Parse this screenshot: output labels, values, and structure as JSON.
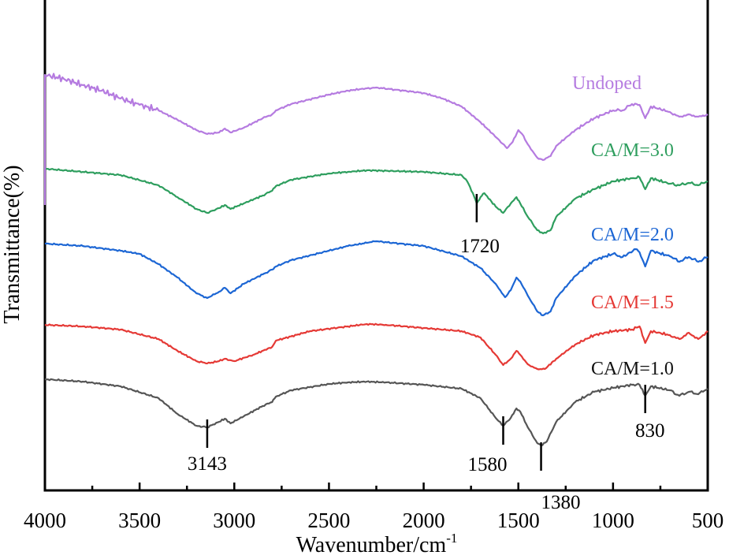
{
  "chart_data": {
    "type": "line",
    "title": "",
    "xlabel": "Wavenumber/cm",
    "xlabel_superscript": "-1",
    "ylabel": "Transmittance(%)",
    "xlim": [
      4000,
      500
    ],
    "x_reversed": true,
    "ylim": [
      0,
      311
    ],
    "y_ticks_shown": false,
    "grid": false,
    "x_ticks": [
      4000,
      3500,
      3000,
      2500,
      2000,
      1500,
      1000,
      500
    ],
    "x_tick_labels": [
      "4000",
      "3500",
      "3000",
      "2500",
      "2000",
      "1500",
      "1000",
      "500"
    ],
    "x_minor_ticks": [
      3750,
      3250,
      2750,
      2250,
      1750,
      1250,
      750
    ],
    "legend_placement": "inline-right",
    "series": [
      {
        "name": "CA/M=1.0",
        "color": "#555555",
        "label_color": "#111111",
        "x": [
          4000,
          3800,
          3600,
          3400,
          3300,
          3200,
          3143,
          3080,
          3050,
          3020,
          2950,
          2850,
          2800,
          2780,
          2700,
          2500,
          2400,
          2300,
          2200,
          2000,
          1800,
          1700,
          1620,
          1580,
          1540,
          1510,
          1490,
          1450,
          1400,
          1380,
          1350,
          1300,
          1200,
          1100,
          1000,
          900,
          860,
          830,
          800,
          700,
          650,
          600,
          550,
          500
        ],
        "y": [
          70.5,
          69,
          66,
          58.5,
          48.5,
          41,
          40,
          43.5,
          45.5,
          42.5,
          47,
          53.5,
          56,
          59.5,
          63.5,
          67.5,
          68.5,
          69,
          68.5,
          67,
          64.5,
          58.5,
          46,
          41,
          46,
          52,
          50,
          40,
          30,
          28.5,
          31,
          43.5,
          56,
          62.5,
          65,
          67,
          67,
          60,
          66,
          63.5,
          60,
          62.5,
          61,
          64.5
        ]
      },
      {
        "name": "CA/M=1.5",
        "color": "#e53935",
        "label_color": "#e53935",
        "x": [
          4000,
          3800,
          3600,
          3400,
          3300,
          3200,
          3143,
          3080,
          3050,
          3000,
          2900,
          2800,
          2780,
          2600,
          2400,
          2300,
          2200,
          2000,
          1800,
          1700,
          1620,
          1580,
          1540,
          1510,
          1490,
          1450,
          1400,
          1360,
          1300,
          1200,
          1100,
          1000,
          900,
          860,
          830,
          800,
          700,
          650,
          600,
          550,
          500
        ],
        "y": [
          105,
          104,
          102,
          96,
          88.5,
          82,
          80.5,
          82,
          83.5,
          82,
          86,
          91,
          95,
          101,
          104,
          105.5,
          105,
          103,
          101,
          97,
          86,
          79.5,
          83.5,
          88.5,
          86,
          80,
          77,
          77,
          83.5,
          92.5,
          98.5,
          101,
          102,
          104,
          93.5,
          101,
          98.5,
          96,
          100,
          96,
          101
        ]
      },
      {
        "name": "CA/M=2.0",
        "color": "#1c66d4",
        "label_color": "#1c66d4",
        "x": [
          4000,
          3800,
          3600,
          3500,
          3400,
          3300,
          3200,
          3143,
          3080,
          3050,
          3020,
          2950,
          2850,
          2800,
          2780,
          2700,
          2500,
          2400,
          2300,
          2250,
          2000,
          1800,
          1700,
          1620,
          1570,
          1540,
          1510,
          1490,
          1450,
          1400,
          1370,
          1330,
          1300,
          1200,
          1100,
          1000,
          950,
          880,
          860,
          830,
          800,
          700,
          650,
          600,
          550,
          500
        ],
        "y": [
          156.5,
          155,
          152,
          150,
          143.5,
          135,
          125,
          122,
          126,
          128.5,
          125,
          131,
          137,
          140,
          142,
          146,
          152,
          155,
          157,
          158,
          155,
          148.5,
          141,
          131,
          122.5,
          127,
          135,
          132.5,
          123.5,
          113.5,
          111,
          113.5,
          122,
          136,
          146,
          150,
          148,
          153,
          151,
          142,
          152,
          148.5,
          145,
          148,
          145,
          148
        ]
      },
      {
        "name": "CA/M=3.0",
        "color": "#2e9e5e",
        "label_color": "#2e9e5e",
        "x": [
          4000,
          3800,
          3600,
          3400,
          3300,
          3200,
          3143,
          3080,
          3050,
          3020,
          2950,
          2850,
          2800,
          2780,
          2700,
          2500,
          2400,
          2300,
          2000,
          1800,
          1770,
          1740,
          1720,
          1700,
          1680,
          1620,
          1580,
          1540,
          1510,
          1490,
          1450,
          1400,
          1370,
          1330,
          1300,
          1200,
          1100,
          1000,
          900,
          860,
          830,
          800,
          700,
          650,
          600,
          550,
          500
        ],
        "y": [
          204,
          202,
          200,
          193.5,
          186,
          178.5,
          176,
          179,
          181,
          178.5,
          182,
          187,
          190,
          193,
          197,
          201,
          202,
          203,
          202,
          200,
          196,
          188.5,
          182,
          186,
          188.5,
          180,
          176,
          182,
          186,
          182,
          173.5,
          165,
          163,
          165,
          173.5,
          185,
          191,
          196,
          198,
          198.5,
          191,
          198,
          194.5,
          193.5,
          195,
          193.5,
          196
        ]
      },
      {
        "name": "Undoped",
        "color": "#b57be0",
        "label_color": "#b57be0",
        "x": [
          4000,
          4000,
          3900,
          3800,
          3700,
          3600,
          3500,
          3400,
          3300,
          3200,
          3143,
          3080,
          3050,
          3020,
          2950,
          2850,
          2800,
          2780,
          2700,
          2500,
          2400,
          2300,
          2250,
          2000,
          1900,
          1800,
          1700,
          1600,
          1560,
          1530,
          1500,
          1480,
          1450,
          1400,
          1370,
          1330,
          1300,
          1200,
          1100,
          1000,
          950,
          900,
          860,
          830,
          800,
          700,
          650,
          600,
          550,
          500
        ],
        "y": [
          181,
          263.5,
          261,
          257,
          253.5,
          248.5,
          244.5,
          241,
          235,
          228.5,
          226,
          227,
          229.5,
          227,
          230,
          236,
          238.5,
          241,
          245,
          251,
          253.5,
          255,
          255.5,
          252,
          248.5,
          243.5,
          233.5,
          222,
          217,
          221,
          228.5,
          226,
          219.5,
          211,
          209.5,
          212,
          218.5,
          228.5,
          236,
          241,
          241,
          245,
          244.5,
          236,
          243.5,
          240,
          237,
          238.5,
          237,
          238.5
        ]
      }
    ],
    "annotations": [
      {
        "text": "3143",
        "x": 3143,
        "y": 40
      },
      {
        "text": "1580",
        "x": 1580,
        "y": 41
      },
      {
        "text": "1380",
        "x": 1380,
        "y": 28.5
      },
      {
        "text": "830",
        "x": 830,
        "y": 60
      },
      {
        "text": "1720",
        "x": 1720,
        "y": 182
      }
    ]
  }
}
